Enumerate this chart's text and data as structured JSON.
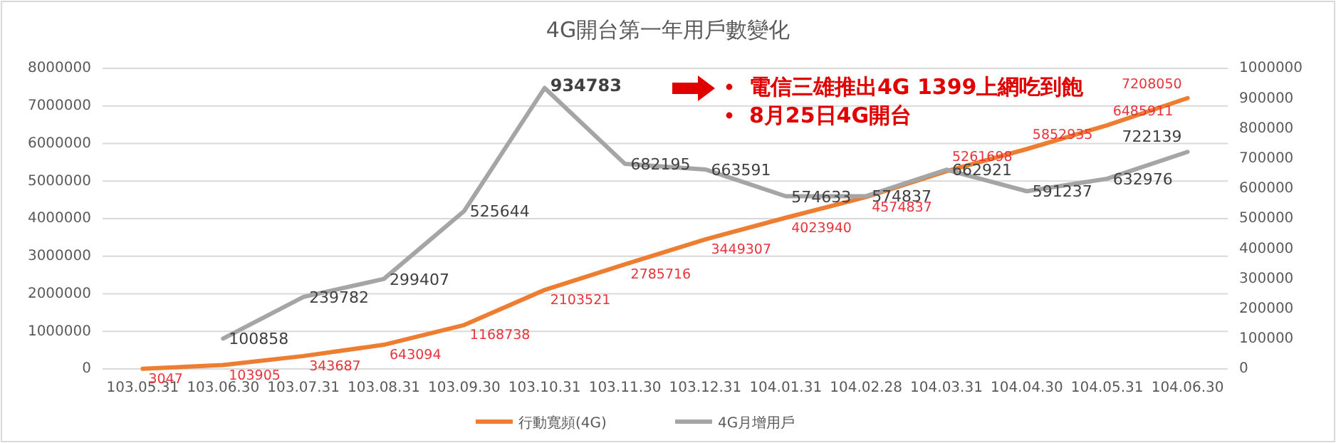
{
  "chart_data": {
    "type": "line",
    "title": "4G開台第一年用戶數變化",
    "categories": [
      "103.05.31",
      "103.06.30",
      "103.07.31",
      "103.08.31",
      "103.09.30",
      "103.10.31",
      "103.11.30",
      "103.12.31",
      "104.01.31",
      "104.02.28",
      "104.03.31",
      "104.04.30",
      "104.05.31",
      "104.06.30"
    ],
    "series": [
      {
        "name": "行動寬頻(4G)",
        "color": "#ed7d31",
        "values": [
          3047,
          103905,
          343687,
          643094,
          1168738,
          2103521,
          2785716,
          3449307,
          4023940,
          4574837,
          5261698,
          5852935,
          6485911,
          7208050
        ]
      },
      {
        "name": "4G月增用戶",
        "color": "#a5a5a5",
        "axis": "y2",
        "values": [
          null,
          100858,
          239782,
          299407,
          525644,
          934783,
          682195,
          663591,
          574633,
          574837,
          662921,
          591237,
          632976,
          722139
        ]
      }
    ],
    "ylim": [
      0,
      8000000
    ],
    "yticks": [
      0,
      1000000,
      2000000,
      3000000,
      4000000,
      5000000,
      6000000,
      7000000,
      8000000
    ],
    "y2lim": [
      0,
      1000000
    ],
    "y2ticks": [
      0,
      100000,
      200000,
      300000,
      400000,
      500000,
      600000,
      700000,
      800000,
      900000,
      1000000
    ],
    "grid": "y",
    "legend": "bottom",
    "data_labels": true,
    "marker": "none",
    "line_style": "solid",
    "annotations": [
      "電信三雄推出4G 1399上網吃到飽",
      "8月25日4G開台"
    ]
  }
}
